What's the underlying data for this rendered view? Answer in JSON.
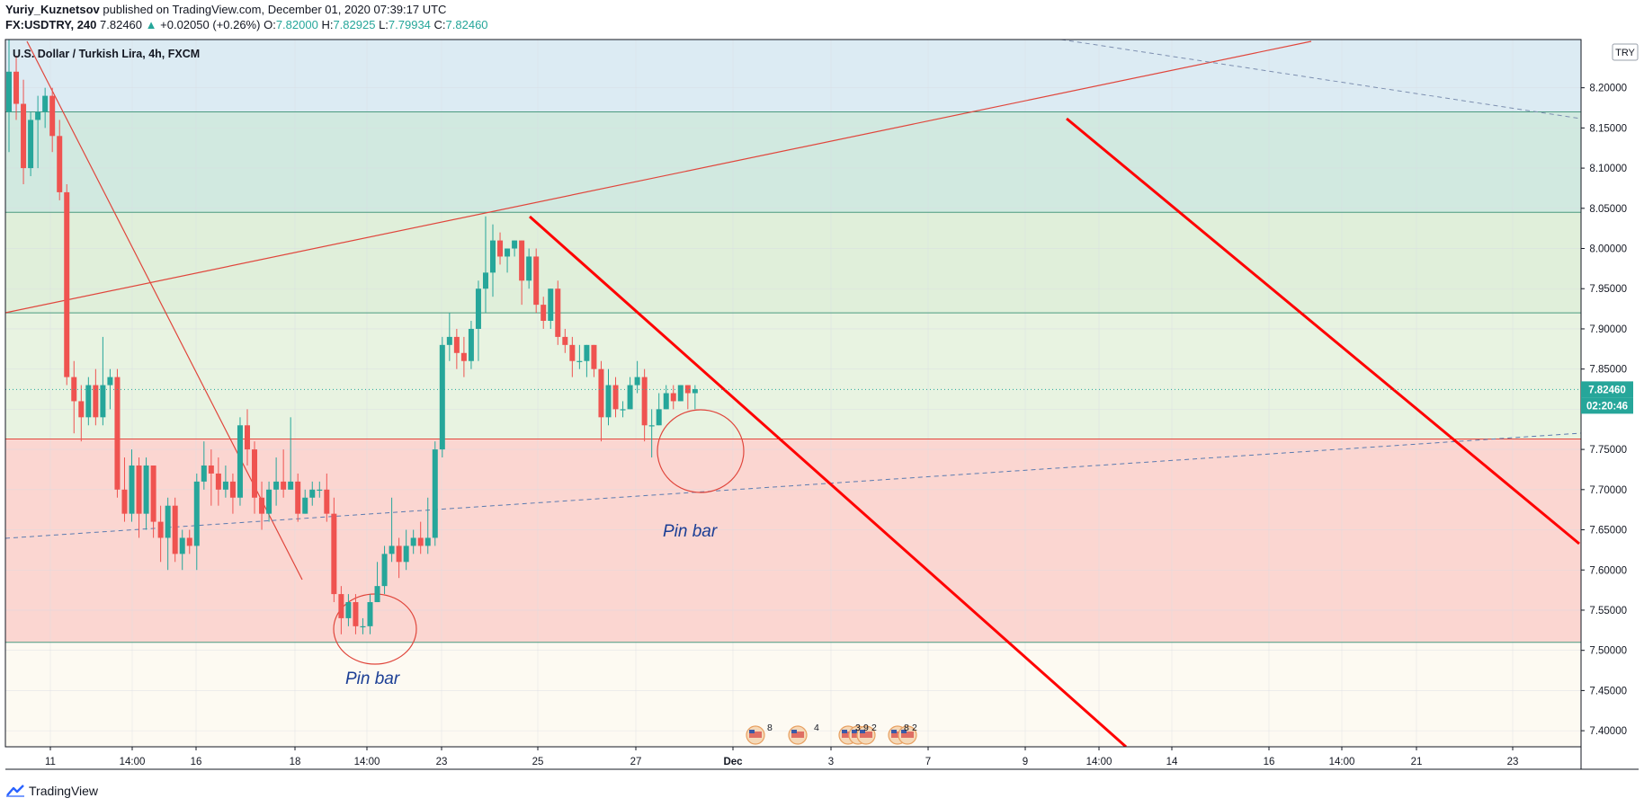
{
  "header": {
    "author": "Yuriy_Kuznetsov",
    "published_text": "published on TradingView.com, December 01, 2020 07:39:17 UTC",
    "symbol": "FX:USDTRY, 240",
    "last": "7.82460",
    "arrow": "▲",
    "change": "+0.02050 (+0.26%)",
    "o_label": "O:",
    "o_value": "7.82000",
    "h_label": "H:",
    "h_value": "7.82925",
    "l_label": "L:",
    "l_value": "7.79934",
    "c_label": "C:",
    "c_value": "7.82460"
  },
  "footer": {
    "brand": "TradingView"
  },
  "colors": {
    "up": "#26a69a",
    "down": "#ef5350",
    "trend": "#ff0000",
    "thin_red": "#e0463c",
    "blue_dash": "#5b7bb0",
    "annot": "#1c3f95"
  },
  "chart_data": {
    "type": "candlestick",
    "title": "U.S. Dollar / Turkish Lira, 4h, FXCM",
    "currency_label": "TRY",
    "ylim": [
      7.38,
      8.26
    ],
    "y_ticks": [
      "8.20000",
      "8.15000",
      "8.10000",
      "8.05000",
      "8.00000",
      "7.95000",
      "7.90000",
      "7.85000",
      "7.80000",
      "7.75000",
      "7.70000",
      "7.65000",
      "7.60000",
      "7.55000",
      "7.50000",
      "7.45000",
      "7.40000"
    ],
    "x_ticks": [
      "11",
      "14:00",
      "16",
      "18",
      "14:00",
      "23",
      "25",
      "27",
      "Dec",
      "3",
      "7",
      "9",
      "14:00",
      "14",
      "16",
      "14:00",
      "21",
      "23"
    ],
    "last_price_label": "7.82460",
    "countdown_label": "02:20:46",
    "last_price": 7.8246,
    "zones": [
      {
        "from": 8.17,
        "to": 8.26,
        "color": "#dcebf3"
      },
      {
        "from": 8.045,
        "to": 8.17,
        "color": "#d1e9e0"
      },
      {
        "from": 7.92,
        "to": 8.045,
        "color": "#e0efda"
      },
      {
        "from": 7.763,
        "to": 7.92,
        "color": "#e8f3e1"
      },
      {
        "from": 7.51,
        "to": 7.763,
        "color": "#fbd6d1"
      },
      {
        "from": 7.38,
        "to": 7.51,
        "color": "#fdfaf2"
      }
    ],
    "level_lines": [
      8.17,
      8.045,
      7.92,
      7.763,
      7.51
    ],
    "annotations": [
      "Pin bar",
      "Pin bar"
    ],
    "event_badges": [
      "8",
      "4",
      "3",
      "9",
      "2",
      "8",
      "2"
    ],
    "candles": [
      [
        8.17,
        8.22,
        8.26,
        8.12
      ],
      [
        8.22,
        8.18,
        8.24,
        8.16
      ],
      [
        8.18,
        8.1,
        8.21,
        8.08
      ],
      [
        8.1,
        8.16,
        8.17,
        8.09
      ],
      [
        8.16,
        8.17,
        8.19,
        8.1
      ],
      [
        8.17,
        8.19,
        8.2,
        8.15
      ],
      [
        8.19,
        8.14,
        8.2,
        8.12
      ],
      [
        8.14,
        8.07,
        8.16,
        8.06
      ],
      [
        8.07,
        7.84,
        8.08,
        7.83
      ],
      [
        7.84,
        7.81,
        7.86,
        7.77
      ],
      [
        7.81,
        7.79,
        7.83,
        7.76
      ],
      [
        7.79,
        7.83,
        7.84,
        7.78
      ],
      [
        7.83,
        7.79,
        7.85,
        7.78
      ],
      [
        7.79,
        7.83,
        7.89,
        7.78
      ],
      [
        7.83,
        7.84,
        7.85,
        7.8
      ],
      [
        7.84,
        7.7,
        7.85,
        7.69
      ],
      [
        7.7,
        7.67,
        7.74,
        7.66
      ],
      [
        7.67,
        7.73,
        7.75,
        7.66
      ],
      [
        7.73,
        7.67,
        7.74,
        7.64
      ],
      [
        7.67,
        7.73,
        7.74,
        7.65
      ],
      [
        7.73,
        7.66,
        7.73,
        7.64
      ],
      [
        7.66,
        7.64,
        7.68,
        7.61
      ],
      [
        7.64,
        7.68,
        7.69,
        7.6
      ],
      [
        7.68,
        7.62,
        7.69,
        7.61
      ],
      [
        7.62,
        7.64,
        7.65,
        7.6
      ],
      [
        7.64,
        7.63,
        7.65,
        7.62
      ],
      [
        7.63,
        7.71,
        7.72,
        7.6
      ],
      [
        7.71,
        7.73,
        7.76,
        7.7
      ],
      [
        7.73,
        7.72,
        7.75,
        7.68
      ],
      [
        7.72,
        7.7,
        7.74,
        7.68
      ],
      [
        7.7,
        7.71,
        7.73,
        7.69
      ],
      [
        7.71,
        7.69,
        7.72,
        7.67
      ],
      [
        7.69,
        7.78,
        7.79,
        7.68
      ],
      [
        7.78,
        7.75,
        7.8,
        7.73
      ],
      [
        7.75,
        7.69,
        7.76,
        7.67
      ],
      [
        7.69,
        7.67,
        7.71,
        7.65
      ],
      [
        7.67,
        7.7,
        7.71,
        7.66
      ],
      [
        7.7,
        7.71,
        7.74,
        7.68
      ],
      [
        7.71,
        7.7,
        7.75,
        7.69
      ],
      [
        7.7,
        7.71,
        7.79,
        7.7
      ],
      [
        7.71,
        7.67,
        7.72,
        7.66
      ],
      [
        7.67,
        7.69,
        7.7,
        7.67
      ],
      [
        7.69,
        7.7,
        7.71,
        7.68
      ],
      [
        7.7,
        7.7,
        7.71,
        7.69
      ],
      [
        7.7,
        7.67,
        7.72,
        7.66
      ],
      [
        7.67,
        7.57,
        7.69,
        7.56
      ],
      [
        7.57,
        7.54,
        7.58,
        7.52
      ],
      [
        7.54,
        7.56,
        7.57,
        7.53
      ],
      [
        7.56,
        7.53,
        7.57,
        7.52
      ],
      [
        7.53,
        7.53,
        7.54,
        7.52
      ],
      [
        7.53,
        7.56,
        7.57,
        7.52
      ],
      [
        7.56,
        7.58,
        7.61,
        7.56
      ],
      [
        7.58,
        7.62,
        7.63,
        7.57
      ],
      [
        7.62,
        7.63,
        7.69,
        7.61
      ],
      [
        7.63,
        7.61,
        7.64,
        7.59
      ],
      [
        7.61,
        7.63,
        7.65,
        7.6
      ],
      [
        7.63,
        7.64,
        7.65,
        7.62
      ],
      [
        7.64,
        7.63,
        7.66,
        7.62
      ],
      [
        7.63,
        7.64,
        7.69,
        7.62
      ],
      [
        7.64,
        7.75,
        7.76,
        7.63
      ],
      [
        7.75,
        7.88,
        7.89,
        7.74
      ],
      [
        7.88,
        7.89,
        7.92,
        7.86
      ],
      [
        7.89,
        7.87,
        7.9,
        7.85
      ],
      [
        7.87,
        7.86,
        7.89,
        7.84
      ],
      [
        7.86,
        7.9,
        7.91,
        7.85
      ],
      [
        7.9,
        7.95,
        7.96,
        7.86
      ],
      [
        7.95,
        7.97,
        8.04,
        7.92
      ],
      [
        7.97,
        8.01,
        8.03,
        7.94
      ],
      [
        8.01,
        7.99,
        8.02,
        7.98
      ],
      [
        7.99,
        8.0,
        8.0,
        7.97
      ],
      [
        8.0,
        8.01,
        8.01,
        7.99
      ],
      [
        8.01,
        7.96,
        8.01,
        7.93
      ],
      [
        7.96,
        7.99,
        8.0,
        7.95
      ],
      [
        7.99,
        7.93,
        8.0,
        7.92
      ],
      [
        7.93,
        7.91,
        7.94,
        7.9
      ],
      [
        7.91,
        7.95,
        7.95,
        7.9
      ],
      [
        7.95,
        7.89,
        7.96,
        7.88
      ],
      [
        7.89,
        7.88,
        7.9,
        7.87
      ],
      [
        7.88,
        7.86,
        7.89,
        7.84
      ],
      [
        7.86,
        7.86,
        7.88,
        7.85
      ],
      [
        7.86,
        7.88,
        7.88,
        7.84
      ],
      [
        7.88,
        7.85,
        7.88,
        7.84
      ],
      [
        7.85,
        7.79,
        7.86,
        7.76
      ],
      [
        7.79,
        7.83,
        7.85,
        7.78
      ],
      [
        7.83,
        7.8,
        7.84,
        7.79
      ],
      [
        7.8,
        7.8,
        7.81,
        7.79
      ],
      [
        7.8,
        7.83,
        7.84,
        7.8
      ],
      [
        7.83,
        7.84,
        7.86,
        7.82
      ],
      [
        7.84,
        7.78,
        7.85,
        7.76
      ],
      [
        7.78,
        7.78,
        7.8,
        7.74
      ],
      [
        7.78,
        7.8,
        7.82,
        7.78
      ],
      [
        7.8,
        7.82,
        7.83,
        7.8
      ],
      [
        7.82,
        7.81,
        7.83,
        7.8
      ],
      [
        7.81,
        7.83,
        7.83,
        7.81
      ],
      [
        7.83,
        7.82,
        7.83,
        7.8
      ],
      [
        7.82,
        7.825,
        7.83,
        7.8
      ]
    ]
  }
}
